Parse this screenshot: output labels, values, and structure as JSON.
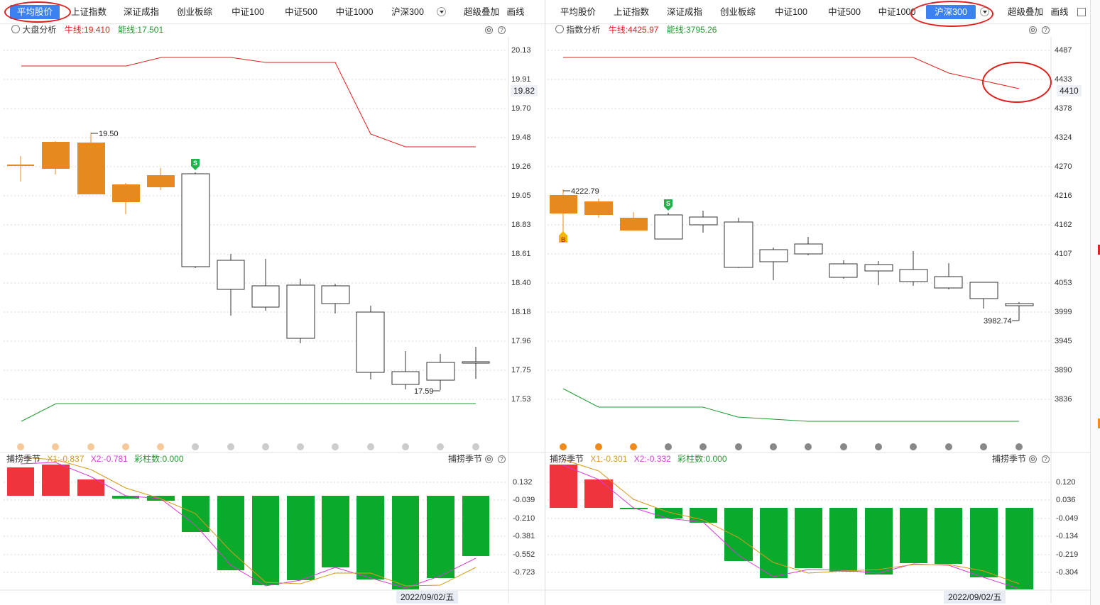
{
  "left": {
    "tabs": [
      "平均股价",
      "上证指数",
      "深证成指",
      "创业板综",
      "中证100",
      "中证500",
      "中证1000",
      "沪深300"
    ],
    "active_tab": "平均股价",
    "extra": [
      "超级叠加",
      "画线"
    ],
    "title": "大盘分析",
    "bull_line": "牛线:19.410",
    "energy_line": "能线:17.501",
    "y_ticks": [
      "20.13",
      "19.91",
      "19.70",
      "19.48",
      "19.26",
      "19.05",
      "18.83",
      "18.61",
      "18.40",
      "18.18",
      "17.96",
      "17.75",
      "17.53"
    ],
    "current_price": "19.82",
    "high_mark": "19.50",
    "low_mark": "17.59",
    "signal_sell": "S",
    "osc_title": "捕捞季节",
    "osc_x1": "X1:-0.837",
    "osc_x2": "X2:-0.781",
    "osc_bars": "彩柱数:0.000",
    "osc_ticks": [
      "0.132",
      "-0.039",
      "-0.210",
      "-0.381",
      "-0.552",
      "-0.723"
    ],
    "date": "2022/09/02/五"
  },
  "right": {
    "tabs": [
      "平均股价",
      "上证指数",
      "深证成指",
      "创业板综",
      "中证100",
      "中证500",
      "中证1000",
      "沪深300"
    ],
    "active_tab": "沪深300",
    "extra": [
      "超级叠加",
      "画线"
    ],
    "title": "指数分析",
    "bull_line": "牛线:4425.97",
    "energy_line": "能线:3795.26",
    "y_ticks": [
      "4487",
      "4433",
      "4378",
      "4324",
      "4270",
      "4216",
      "4162",
      "4107",
      "4053",
      "3999",
      "3945",
      "3890",
      "3836"
    ],
    "current_price": "4410",
    "high_mark": "4222.79",
    "low_mark": "3982.74",
    "signal_buy": "B",
    "signal_sell": "S",
    "osc_title": "捕捞季节",
    "osc_x1": "X1:-0.301",
    "osc_x2": "X2:-0.332",
    "osc_bars": "彩柱数:0.000",
    "osc_ticks": [
      "0.120",
      "0.036",
      "-0.049",
      "-0.134",
      "-0.219",
      "-0.304"
    ],
    "date": "2022/09/02/五"
  },
  "colors": {
    "up": "#e68a1f",
    "bull": "#e0201c",
    "energy": "#1f9a2f",
    "osc_pos": "#f0343c",
    "osc_neg": "#0aab2c",
    "active_tab": "#3b82f0"
  }
}
